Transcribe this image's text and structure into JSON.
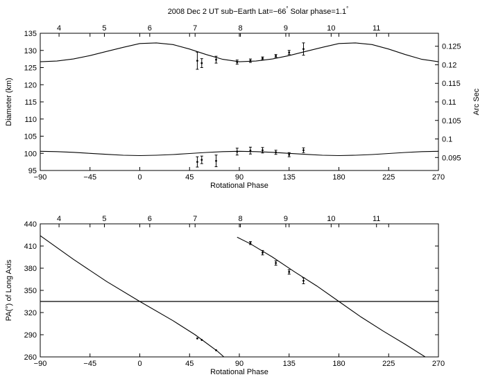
{
  "figure_title": "2008 Dec 2 UT  sub−Earth Lat=−66",
  "title_deg": "°",
  "title_rest": "  Solar phase=1.1",
  "title_deg2": "°",
  "chart_data": [
    {
      "type": "line",
      "xlabel": "Rotational Phase",
      "ylabel": "Diameter (km)",
      "y2label": "Arc Sec",
      "xlim": [
        -90,
        270
      ],
      "ylim": [
        95,
        135
      ],
      "y2lim": [
        0.0915,
        0.1285
      ],
      "x_ticks": [
        "−90",
        "−45",
        "0",
        "45",
        "90",
        "135",
        "180",
        "225",
        "270"
      ],
      "y_ticks": [
        "95",
        "100",
        "105",
        "110",
        "115",
        "120",
        "125",
        "130",
        "135"
      ],
      "y2_ticks": [
        "0.095",
        "0.1",
        "0.105",
        "0.11",
        "0.115",
        "0.12",
        "0.125"
      ],
      "top_axis_ticks": [
        "4",
        "5",
        "6",
        "7",
        "8",
        "9",
        "10",
        "11"
      ],
      "top_axis_phase": [
        -73,
        -32,
        9,
        50,
        91,
        132,
        173,
        214
      ],
      "grid": false,
      "series": [
        {
          "role": "model-major",
          "x": [
            -90,
            -75,
            -60,
            -45,
            -30,
            -15,
            0,
            15,
            30,
            45,
            60,
            75,
            90,
            105,
            120,
            135,
            150,
            165,
            180,
            195,
            210,
            225,
            240,
            255,
            270
          ],
          "y": [
            126.7,
            126.9,
            127.5,
            128.5,
            129.7,
            130.9,
            132.0,
            132.2,
            131.7,
            130.4,
            128.8,
            127.4,
            126.7,
            126.9,
            127.5,
            128.5,
            129.7,
            130.9,
            132.0,
            132.2,
            131.7,
            130.4,
            128.8,
            127.4,
            126.7
          ]
        },
        {
          "role": "model-minor",
          "x": [
            -90,
            -75,
            -60,
            -45,
            -30,
            -15,
            0,
            15,
            30,
            45,
            60,
            75,
            90,
            105,
            120,
            135,
            150,
            165,
            180,
            195,
            210,
            225,
            240,
            255,
            270
          ],
          "y": [
            100.6,
            100.5,
            100.3,
            100.0,
            99.7,
            99.45,
            99.35,
            99.45,
            99.65,
            99.95,
            100.25,
            100.5,
            100.6,
            100.5,
            100.3,
            100.0,
            99.7,
            99.45,
            99.35,
            99.45,
            99.65,
            99.95,
            100.25,
            100.5,
            100.6
          ]
        },
        {
          "role": "observed-major",
          "points": [
            {
              "x": 52,
              "y": 127.0,
              "err": 2.5
            },
            {
              "x": 56,
              "y": 126.3,
              "err": 1.3
            },
            {
              "x": 69,
              "y": 127.3,
              "err": 1.0
            },
            {
              "x": 88,
              "y": 126.6,
              "err": 0.6
            },
            {
              "x": 100,
              "y": 127.0,
              "err": 0.5
            },
            {
              "x": 111,
              "y": 127.7,
              "err": 0.4
            },
            {
              "x": 123,
              "y": 128.4,
              "err": 0.4
            },
            {
              "x": 135,
              "y": 129.4,
              "err": 0.6
            },
            {
              "x": 148,
              "y": 130.4,
              "err": 1.8
            }
          ]
        },
        {
          "role": "observed-minor",
          "points": [
            {
              "x": 52,
              "y": 97.5,
              "err": 1.5
            },
            {
              "x": 56,
              "y": 98.1,
              "err": 1.1
            },
            {
              "x": 69,
              "y": 97.8,
              "err": 1.7
            },
            {
              "x": 88,
              "y": 100.5,
              "err": 1.0
            },
            {
              "x": 100,
              "y": 100.8,
              "err": 1.0
            },
            {
              "x": 111,
              "y": 100.9,
              "err": 0.8
            },
            {
              "x": 123,
              "y": 100.3,
              "err": 0.6
            },
            {
              "x": 135,
              "y": 99.6,
              "err": 0.6
            },
            {
              "x": 148,
              "y": 100.9,
              "err": 0.7
            }
          ]
        }
      ]
    },
    {
      "type": "line",
      "xlabel": "Rotational Phase",
      "ylabel": "PA(°) of Long Axis",
      "xlim": [
        -90,
        270
      ],
      "ylim": [
        260,
        440
      ],
      "x_ticks": [
        "−90",
        "−45",
        "0",
        "45",
        "90",
        "135",
        "180",
        "225",
        "270"
      ],
      "y_ticks": [
        "260",
        "290",
        "320",
        "350",
        "380",
        "410",
        "440"
      ],
      "top_axis_ticks": [
        "4",
        "5",
        "6",
        "7",
        "8",
        "9",
        "10",
        "11"
      ],
      "top_axis_phase": [
        -73,
        -32,
        9,
        50,
        91,
        132,
        173,
        214
      ],
      "grid": false,
      "series": [
        {
          "role": "model-segment-1",
          "x": [
            -90,
            -60,
            -30,
            0,
            30,
            50,
            70,
            76
          ],
          "y": [
            424,
            392,
            362,
            335,
            309,
            290,
            268,
            260
          ]
        },
        {
          "role": "model-segment-2",
          "x": [
            88,
            100,
            120,
            140,
            160,
            180,
            200,
            220,
            240,
            258
          ],
          "y": [
            422,
            413,
            395,
            375,
            356,
            335,
            314,
            295,
            277,
            260
          ]
        },
        {
          "role": "horizontal-line",
          "y": 335
        },
        {
          "role": "observed",
          "points": [
            {
              "x": 52,
              "y": 285,
              "err": 0
            },
            {
              "x": 56,
              "y": 283,
              "err": 0
            },
            {
              "x": 69,
              "y": 269,
              "err": 0
            },
            {
              "x": 100,
              "y": 414,
              "err": 2
            },
            {
              "x": 111,
              "y": 401,
              "err": 3
            },
            {
              "x": 123,
              "y": 387,
              "err": 3
            },
            {
              "x": 135,
              "y": 375,
              "err": 3
            },
            {
              "x": 148,
              "y": 363,
              "err": 4
            }
          ]
        }
      ]
    }
  ]
}
